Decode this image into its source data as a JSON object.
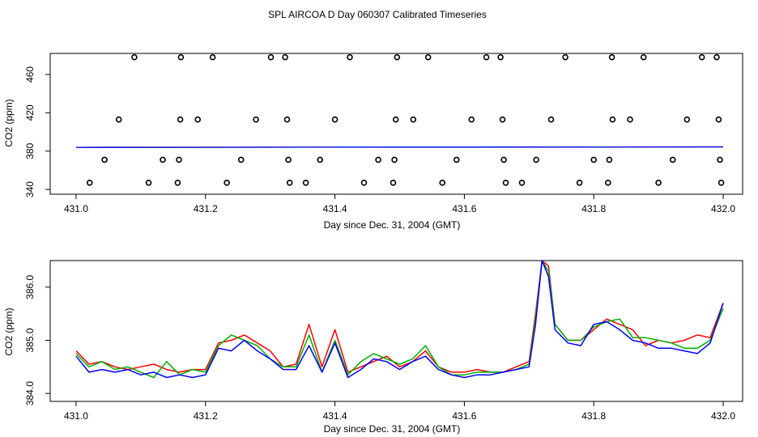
{
  "chart_data": [
    {
      "type": "scatter",
      "title": "SPL AIRCOA D  Day 060307  Calibrated Timeseries",
      "xlabel": "Day since Dec. 31, 2004 (GMT)",
      "ylabel": "CO2 (ppm)",
      "xlim": [
        430.96,
        432.03
      ],
      "ylim": [
        335,
        482
      ],
      "xticks": [
        431.0,
        431.2,
        431.4,
        431.6,
        431.8,
        432.0
      ],
      "xtick_labels": [
        "431.0",
        "431.2",
        "431.4",
        "431.6",
        "431.8",
        "432.0"
      ],
      "yticks": [
        340,
        380,
        420,
        460
      ],
      "ytick_labels": [
        "340",
        "380",
        "420",
        "460"
      ],
      "points": {
        "x": [
          431.09,
          431.162,
          431.211,
          431.301,
          431.323,
          431.423,
          431.496,
          431.544,
          431.634,
          431.656,
          431.756,
          431.828,
          431.877,
          431.967,
          431.99,
          431.066,
          431.161,
          431.188,
          431.278,
          431.326,
          431.4,
          431.494,
          431.521,
          431.611,
          431.659,
          431.734,
          431.829,
          431.856,
          431.944,
          431.993,
          431.044,
          431.134,
          431.159,
          431.255,
          431.328,
          431.377,
          431.467,
          431.492,
          431.588,
          431.661,
          431.711,
          431.8,
          431.824,
          431.922,
          431.995,
          431.021,
          431.112,
          431.157,
          431.233,
          431.33,
          431.355,
          431.445,
          431.49,
          431.566,
          431.664,
          431.689,
          431.778,
          431.822,
          431.9,
          431.997
        ],
        "y": [
          478,
          478,
          478,
          478,
          478,
          478,
          478,
          478,
          478,
          478,
          478,
          478,
          478,
          478,
          478,
          413,
          413,
          413,
          413,
          413,
          413,
          413,
          413,
          413,
          413,
          413,
          413,
          413,
          413,
          413,
          371,
          371,
          371,
          371,
          371,
          371,
          371,
          371,
          371,
          371,
          371,
          371,
          371,
          371,
          371,
          347,
          347,
          347,
          347,
          347,
          347,
          347,
          347,
          347,
          347,
          347,
          347,
          347,
          347,
          347
        ]
      },
      "series": [
        {
          "name": "",
          "color": "#ff0000",
          "x": [
            431.0,
            432.0
          ],
          "values": [
            383.9,
            384.4
          ]
        },
        {
          "name": "",
          "color": "#00b000",
          "x": [
            431.0,
            432.0
          ],
          "values": [
            383.9,
            384.4
          ]
        },
        {
          "name": "",
          "color": "#0000ff",
          "x": [
            431.0,
            432.0
          ],
          "values": [
            383.9,
            384.4
          ]
        }
      ]
    },
    {
      "type": "line",
      "title": "",
      "xlabel": "Day since Dec. 31, 2004 (GMT)",
      "ylabel": "CO2 (ppm)",
      "xlim": [
        430.96,
        432.03
      ],
      "ylim": [
        383.85,
        386.5
      ],
      "xticks": [
        431.0,
        431.2,
        431.4,
        431.6,
        431.8,
        432.0
      ],
      "xtick_labels": [
        "431.0",
        "431.2",
        "431.4",
        "431.6",
        "431.8",
        "432.0"
      ],
      "yticks": [
        384.0,
        385.0,
        386.0
      ],
      "ytick_labels": [
        "384.0",
        "385.0",
        "386.0"
      ],
      "x": [
        431.0,
        431.02,
        431.04,
        431.06,
        431.08,
        431.1,
        431.12,
        431.14,
        431.16,
        431.18,
        431.2,
        431.22,
        431.24,
        431.26,
        431.28,
        431.3,
        431.32,
        431.34,
        431.36,
        431.38,
        431.4,
        431.42,
        431.44,
        431.46,
        431.48,
        431.5,
        431.52,
        431.54,
        431.56,
        431.58,
        431.6,
        431.62,
        431.64,
        431.66,
        431.68,
        431.7,
        431.71,
        431.72,
        431.73,
        431.74,
        431.76,
        431.78,
        431.8,
        431.82,
        431.84,
        431.86,
        431.88,
        431.9,
        431.92,
        431.94,
        431.96,
        431.98,
        432.0
      ],
      "series": [
        {
          "name": "",
          "color": "#ff0000",
          "values": [
            384.8,
            384.55,
            384.6,
            384.5,
            384.45,
            384.5,
            384.55,
            384.45,
            384.4,
            384.45,
            384.45,
            384.95,
            385.0,
            385.1,
            384.95,
            384.8,
            384.5,
            384.55,
            385.3,
            384.5,
            385.2,
            384.4,
            384.5,
            384.6,
            384.7,
            384.5,
            384.6,
            384.8,
            384.5,
            384.4,
            384.4,
            384.45,
            384.4,
            384.4,
            384.5,
            384.6,
            385.5,
            386.5,
            386.4,
            385.3,
            385.0,
            385.0,
            385.2,
            385.4,
            385.3,
            385.2,
            384.9,
            385.0,
            384.95,
            385.0,
            385.1,
            385.05,
            385.7
          ]
        },
        {
          "name": "",
          "color": "#00b000",
          "values": [
            384.75,
            384.5,
            384.6,
            384.45,
            384.5,
            384.4,
            384.3,
            384.6,
            384.35,
            384.45,
            384.4,
            384.9,
            385.1,
            385.0,
            384.9,
            384.65,
            384.5,
            384.5,
            385.1,
            384.4,
            385.0,
            384.35,
            384.6,
            384.75,
            384.65,
            384.55,
            384.65,
            384.9,
            384.5,
            384.35,
            384.35,
            384.4,
            384.4,
            384.4,
            384.45,
            384.55,
            385.4,
            386.5,
            386.3,
            385.3,
            385.0,
            385.0,
            385.25,
            385.35,
            385.4,
            385.05,
            385.05,
            385.0,
            384.95,
            384.85,
            384.85,
            385.0,
            385.6
          ]
        },
        {
          "name": "",
          "color": "#0000ff",
          "values": [
            384.7,
            384.4,
            384.45,
            384.4,
            384.45,
            384.35,
            384.4,
            384.3,
            384.35,
            384.3,
            384.35,
            384.85,
            384.8,
            385.0,
            384.8,
            384.65,
            384.45,
            384.45,
            384.9,
            384.4,
            384.95,
            384.3,
            384.45,
            384.65,
            384.6,
            384.45,
            384.6,
            384.7,
            384.45,
            384.35,
            384.3,
            384.35,
            384.35,
            384.4,
            384.45,
            384.5,
            385.3,
            386.5,
            386.2,
            385.2,
            384.95,
            384.9,
            385.3,
            385.35,
            385.2,
            385.0,
            384.95,
            384.85,
            384.85,
            384.8,
            384.75,
            384.95,
            385.7
          ]
        }
      ]
    }
  ]
}
